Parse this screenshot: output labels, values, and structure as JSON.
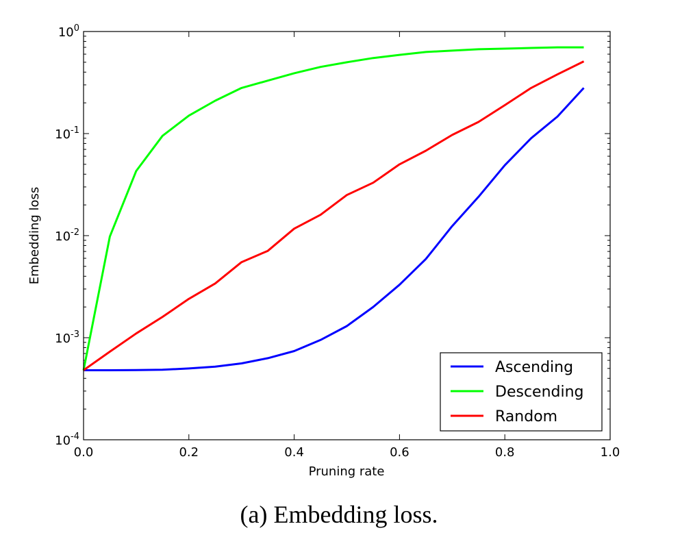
{
  "chart_data": {
    "type": "line",
    "title": "",
    "xlabel": "Pruning rate",
    "ylabel": "Embedding loss",
    "xlim": [
      0.0,
      1.0
    ],
    "ylim": [
      0.0001,
      1
    ],
    "yscale": "log",
    "grid": false,
    "legend_position": "lower-right",
    "x_ticks": [
      "0.0",
      "0.2",
      "0.4",
      "0.6",
      "0.8",
      "1.0"
    ],
    "y_ticks": [
      {
        "base": "10",
        "exp": "-4"
      },
      {
        "base": "10",
        "exp": "-3"
      },
      {
        "base": "10",
        "exp": "-2"
      },
      {
        "base": "10",
        "exp": "-1"
      },
      {
        "base": "10",
        "exp": "0"
      }
    ],
    "x": [
      0.0,
      0.05,
      0.1,
      0.15,
      0.2,
      0.25,
      0.3,
      0.35,
      0.4,
      0.45,
      0.5,
      0.55,
      0.6,
      0.65,
      0.7,
      0.75,
      0.8,
      0.85,
      0.9,
      0.95
    ],
    "series": [
      {
        "name": "Ascending",
        "color": "#0000ff",
        "values": [
          0.00048,
          0.00048,
          0.000482,
          0.000485,
          0.0005,
          0.00052,
          0.00056,
          0.00063,
          0.00074,
          0.00095,
          0.0013,
          0.002,
          0.0033,
          0.0059,
          0.0124,
          0.024,
          0.049,
          0.09,
          0.147,
          0.28
        ]
      },
      {
        "name": "Descending",
        "color": "#00ff00",
        "values": [
          0.00048,
          0.0098,
          0.043,
          0.095,
          0.15,
          0.21,
          0.28,
          0.33,
          0.39,
          0.45,
          0.5,
          0.55,
          0.59,
          0.63,
          0.65,
          0.67,
          0.68,
          0.69,
          0.7,
          0.7
        ]
      },
      {
        "name": "Random",
        "color": "#ff0000",
        "values": [
          0.00048,
          0.00073,
          0.0011,
          0.0016,
          0.0024,
          0.0034,
          0.0055,
          0.0071,
          0.0117,
          0.016,
          0.025,
          0.033,
          0.05,
          0.068,
          0.097,
          0.13,
          0.19,
          0.28,
          0.38,
          0.51
        ]
      }
    ]
  },
  "caption": "(a) Embedding loss."
}
